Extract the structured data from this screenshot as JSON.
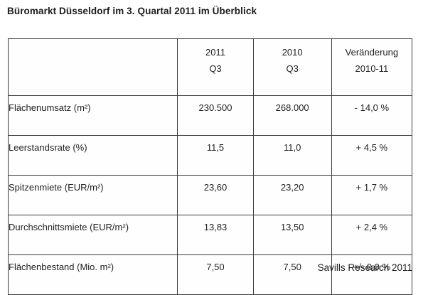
{
  "title": "Büromarkt Düsseldorf im 3. Quartal 2011 im Überblick",
  "table": {
    "header": {
      "label_col": "",
      "col_2011_line1": "2011",
      "col_2011_line2": "Q3",
      "col_2010_line1": "2010",
      "col_2010_line2": "Q3",
      "col_change_line1": "Veränderung",
      "col_change_line2": "2010-11"
    },
    "rows": [
      {
        "label": "Flächenumsatz (m²)",
        "q3_2011": "230.500",
        "q3_2010": "268.000",
        "change": "- 14,0 %"
      },
      {
        "label": "Leerstandsrate (%)",
        "q3_2011": "11,5",
        "q3_2010": "11,0",
        "change": "+ 4,5 %"
      },
      {
        "label": "Spitzenmiete (EUR/m²)",
        "q3_2011": "23,60",
        "q3_2010": "23,20",
        "change": "+ 1,7 %"
      },
      {
        "label": "Durchschnittsmiete (EUR/m²)",
        "q3_2011": "13,83",
        "q3_2010": "13,50",
        "change": "+ 2,4 %"
      },
      {
        "label": "Flächenbestand (Mio. m²)",
        "q3_2011": "7,50",
        "q3_2010": "7,50",
        "change": "+/- 0,0 %"
      }
    ]
  },
  "footer": "Savills Research 2011",
  "colors": {
    "text": "#1f1f1f",
    "border": "#3a3a3a",
    "background": "#ffffff"
  }
}
